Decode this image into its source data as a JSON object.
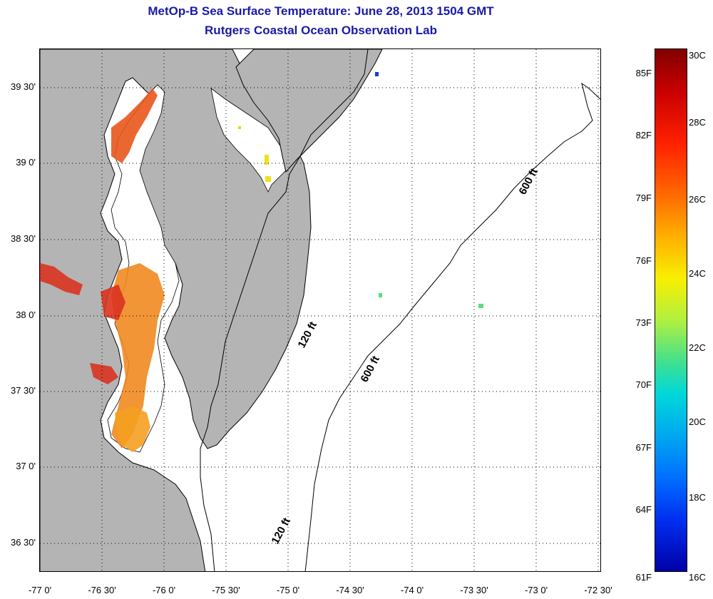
{
  "title": {
    "line1": "MetOp-B Sea Surface Temperature:  June 28, 2013 1504 GMT",
    "line2": "Rutgers Coastal Ocean Observation Lab"
  },
  "map": {
    "lat_labels": [
      "39 30'",
      "39 0'",
      "38 30'",
      "38 0'",
      "37 30'",
      "37 0'",
      "36 30'"
    ],
    "lon_labels": [
      "-77 0'",
      "-76 30'",
      "-76 0'",
      "-75 30'",
      "-75 0'",
      "-74 30'",
      "-74 0'",
      "-73 30'",
      "-73 0'",
      "-72 30'"
    ],
    "contour_labels": [
      "600 ft",
      "120 ft",
      "600 ft",
      "120 ft"
    ],
    "colors": {
      "land": "#b4b4b4",
      "water": "#ffffff",
      "coast": "#000000"
    }
  },
  "colorbar": {
    "f_labels": [
      "85F",
      "82F",
      "79F",
      "76F",
      "73F",
      "70F",
      "67F",
      "64F",
      "61F"
    ],
    "c_labels": [
      "30C",
      "28C",
      "26C",
      "24C",
      "22C",
      "20C",
      "18C",
      "16C"
    ],
    "min_c": 16,
    "max_c": 30
  }
}
